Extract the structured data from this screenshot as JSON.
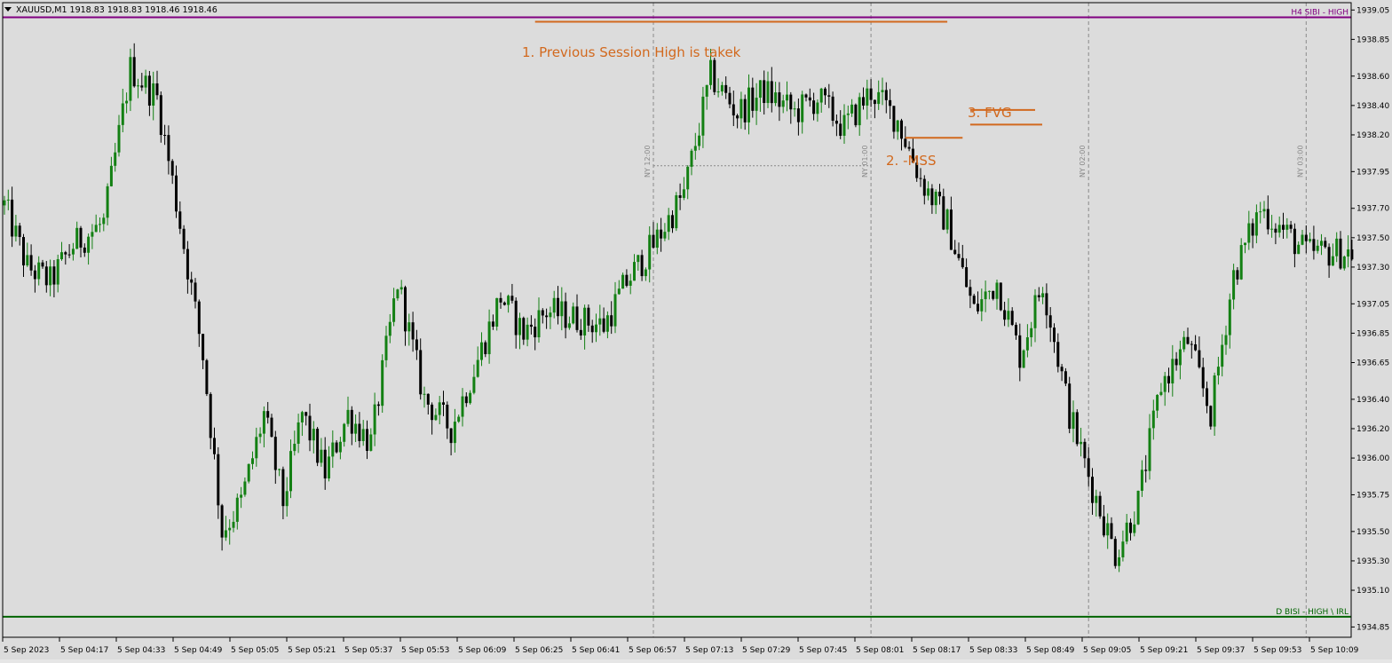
{
  "header": {
    "menu_icon": "triangle-down-icon",
    "title": "XAUUSD,M1  1918.83 1918.83 1918.46 1918.46"
  },
  "colors": {
    "background": "#dcdcdc",
    "frame": "#000000",
    "bull": "#138013",
    "bear": "#000000",
    "annotation": "#d2691e",
    "resistance": "#800080",
    "support": "#006400",
    "session_line": "#8a8a8a"
  },
  "chart_data": {
    "type": "candlestick",
    "symbol": "XAUUSD",
    "timeframe": "M1",
    "ylim": [
      1934.78,
      1939.1
    ],
    "y_ticks": [
      "1939.05",
      "1938.85",
      "1938.60",
      "1938.40",
      "1938.20",
      "1937.95",
      "1937.70",
      "1937.50",
      "1937.30",
      "1937.05",
      "1936.85",
      "1936.65",
      "1936.40",
      "1936.20",
      "1936.00",
      "1935.75",
      "1935.50",
      "1935.30",
      "1935.10",
      "1934.85"
    ],
    "x_ticks": [
      "5 Sep 2023",
      "5 Sep 04:17",
      "5 Sep 04:33",
      "5 Sep 04:49",
      "5 Sep 05:05",
      "5 Sep 05:21",
      "5 Sep 05:37",
      "5 Sep 05:53",
      "5 Sep 06:09",
      "5 Sep 06:25",
      "5 Sep 06:41",
      "5 Sep 06:57",
      "5 Sep 07:13",
      "5 Sep 07:29",
      "5 Sep 07:45",
      "5 Sep 08:01",
      "5 Sep 08:17",
      "5 Sep 08:33",
      "5 Sep 08:49",
      "5 Sep 09:05",
      "5 Sep 09:21",
      "5 Sep 09:37",
      "5 Sep 09:53",
      "5 Sep 10:09"
    ],
    "close_path": [
      [
        0,
        1937.72
      ],
      [
        6,
        1937.3
      ],
      [
        12,
        1937.2
      ],
      [
        18,
        1937.45
      ],
      [
        26,
        1937.6
      ],
      [
        33,
        1938.65
      ],
      [
        40,
        1938.45
      ],
      [
        46,
        1937.6
      ],
      [
        52,
        1936.7
      ],
      [
        57,
        1935.5
      ],
      [
        62,
        1935.7
      ],
      [
        68,
        1936.3
      ],
      [
        73,
        1935.7
      ],
      [
        78,
        1936.3
      ],
      [
        84,
        1935.9
      ],
      [
        90,
        1936.3
      ],
      [
        96,
        1936.1
      ],
      [
        103,
        1937.2
      ],
      [
        110,
        1936.4
      ],
      [
        117,
        1936.2
      ],
      [
        123,
        1936.6
      ],
      [
        130,
        1937.1
      ],
      [
        136,
        1936.85
      ],
      [
        142,
        1937.0
      ],
      [
        150,
        1936.95
      ],
      [
        157,
        1936.9
      ],
      [
        163,
        1937.2
      ],
      [
        170,
        1937.45
      ],
      [
        178,
        1937.8
      ],
      [
        185,
        1938.6
      ],
      [
        192,
        1938.35
      ],
      [
        199,
        1938.5
      ],
      [
        207,
        1938.35
      ],
      [
        213,
        1938.45
      ],
      [
        220,
        1938.25
      ],
      [
        227,
        1938.5
      ],
      [
        234,
        1938.3
      ],
      [
        240,
        1937.9
      ],
      [
        247,
        1937.6
      ],
      [
        254,
        1937.0
      ],
      [
        260,
        1937.2
      ],
      [
        266,
        1936.7
      ],
      [
        272,
        1937.2
      ],
      [
        279,
        1936.3
      ],
      [
        285,
        1935.8
      ],
      [
        291,
        1935.35
      ],
      [
        297,
        1935.7
      ],
      [
        303,
        1936.5
      ],
      [
        310,
        1936.8
      ],
      [
        316,
        1936.3
      ],
      [
        322,
        1937.25
      ],
      [
        329,
        1937.7
      ],
      [
        335,
        1937.55
      ],
      [
        341,
        1937.4
      ]
    ],
    "horizontal_levels": [
      {
        "label": "H4 SIBI - HIGH",
        "value": 1939.0
      },
      {
        "label": "D BISI - HIGH \\ IRL",
        "value": 1934.92
      }
    ],
    "sessions": [
      {
        "label": "NY 12:00",
        "index": 170
      },
      {
        "label": "NY 01:00",
        "index": 227
      },
      {
        "label": "NY 02:00",
        "index": 284
      },
      {
        "label": "NY 03:00",
        "index": 341
      }
    ],
    "session_range_line": {
      "value": 1937.99,
      "from_index": 170,
      "to_index": 227
    },
    "annotations": {
      "previous_high": {
        "text": "1. Previous Session High is takek",
        "value": 1938.97,
        "from_index": 139,
        "to_index": 247
      },
      "mss": {
        "text": "2. -MSS",
        "value": 1938.18,
        "from_index": 236,
        "to_index": 251
      },
      "fvg": {
        "text": "3. FVG",
        "top": 1938.37,
        "bottom": 1938.27,
        "from_index": 253,
        "to_index": 270
      }
    }
  }
}
